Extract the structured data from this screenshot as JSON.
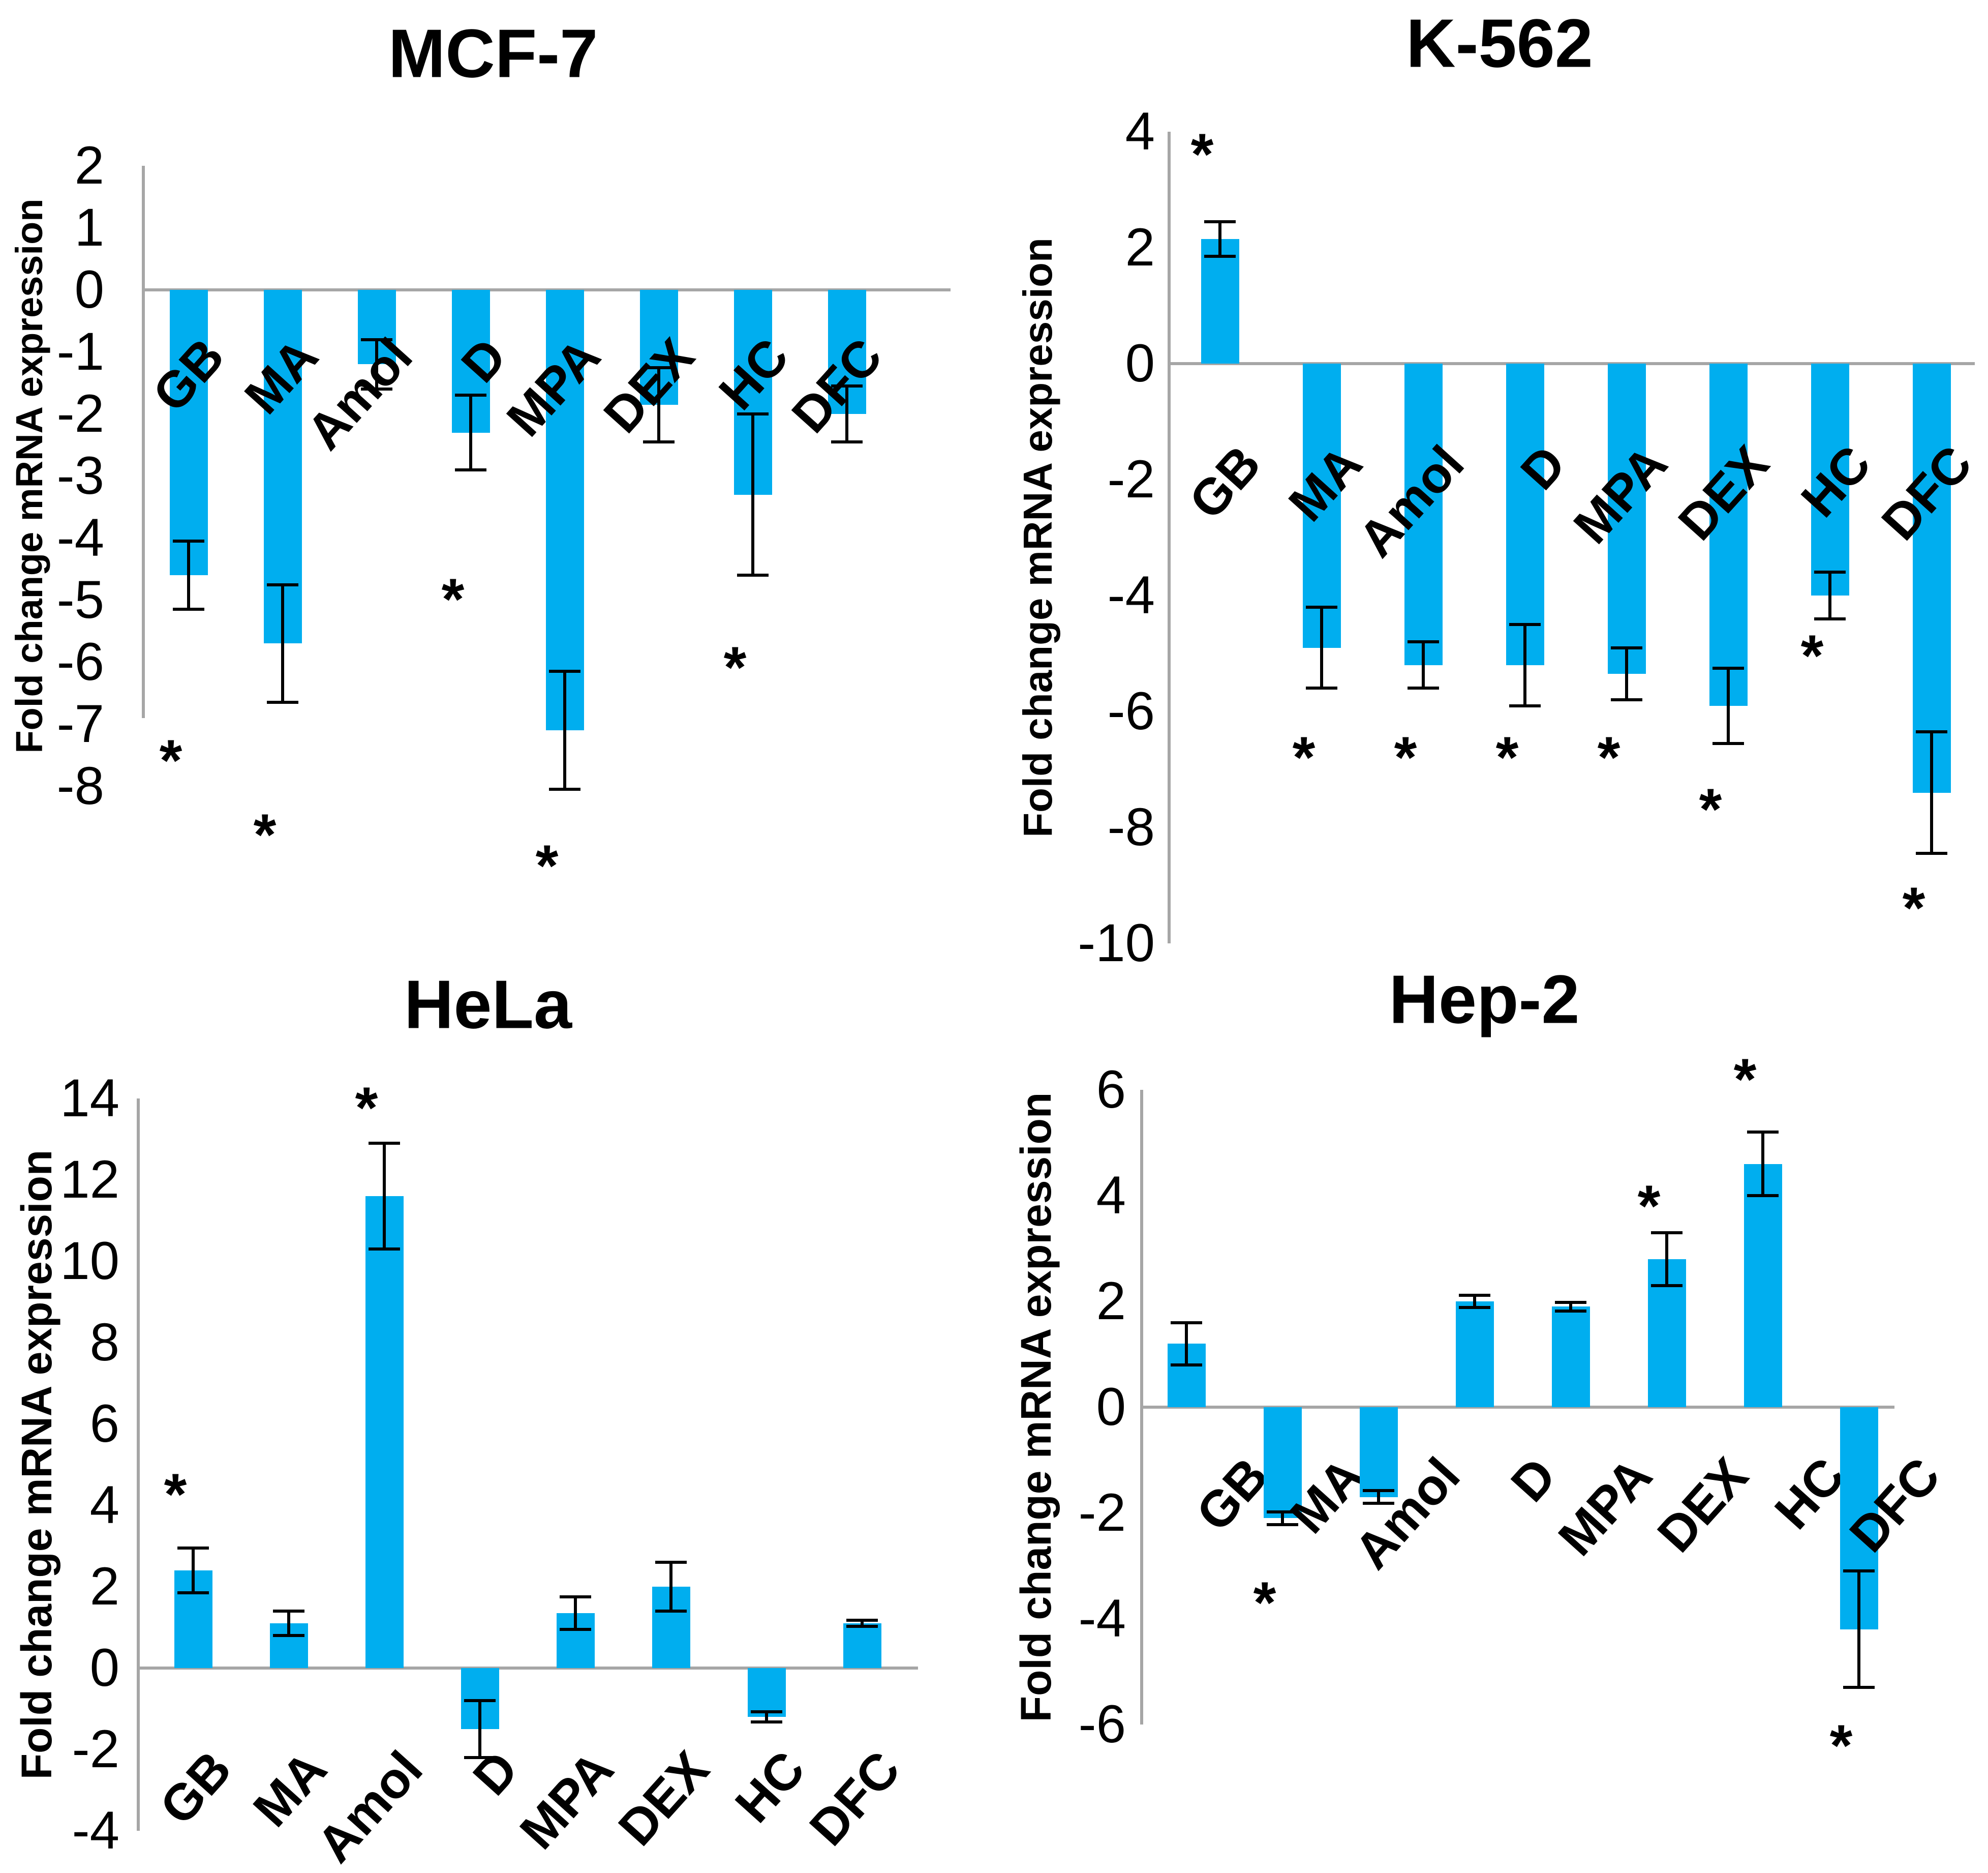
{
  "colors": {
    "bar": "#00AEEF",
    "axis_line": "#A6A6A6",
    "error_bar": "#000000",
    "text": "#000000",
    "background": "#FFFFFF"
  },
  "significance_marker": "*",
  "chart_data": [
    {
      "id": "mcf7",
      "type": "bar",
      "title": "MCF-7",
      "ylabel": "Fold change mRNA expression",
      "ylim": [
        -8,
        2
      ],
      "ytick_step": 1,
      "grid": false,
      "legend": "none",
      "categories": [
        "GB",
        "MA",
        "Amol",
        "D",
        "MPA",
        "DEX",
        "HC",
        "DFC"
      ],
      "values": [
        -4.6,
        -5.7,
        -1.2,
        -2.3,
        -7.1,
        -1.85,
        -3.3,
        -2.0
      ],
      "errors": [
        0.55,
        0.95,
        0.4,
        0.6,
        0.95,
        0.6,
        1.3,
        0.45
      ],
      "sig_y": [
        -7.5,
        -8.7,
        null,
        -4.9,
        null,
        null,
        -6.0,
        null
      ],
      "sig_y_low": [
        null,
        null,
        null,
        null,
        -9.2,
        null,
        null,
        null
      ]
    },
    {
      "id": "k562",
      "type": "bar",
      "title": "K-562",
      "ylabel": "Fold change mRNA expression",
      "ylim": [
        -10,
        4
      ],
      "ytick_step": 2,
      "grid": false,
      "legend": "none",
      "categories": [
        "GB",
        "MA",
        "Amol",
        "D",
        "MPA",
        "DEX",
        "HC",
        "DFC"
      ],
      "values": [
        2.15,
        -4.9,
        -5.2,
        -5.2,
        -5.35,
        -5.9,
        -4.0,
        -7.4
      ],
      "errors": [
        0.3,
        0.7,
        0.4,
        0.7,
        0.45,
        0.65,
        0.4,
        1.05
      ],
      "sig_y": [
        3.7,
        -6.7,
        -6.7,
        -6.7,
        -6.7,
        -7.6,
        -4.95,
        -9.3
      ],
      "sig_y_low": [
        null,
        null,
        null,
        null,
        null,
        null,
        null,
        null
      ]
    },
    {
      "id": "hela",
      "type": "bar",
      "title": "HeLa",
      "ylabel": "Fold change mRNA expression",
      "ylim": [
        -4,
        14
      ],
      "ytick_step": 2,
      "grid": false,
      "legend": "none",
      "categories": [
        "GB",
        "MA",
        "Amol",
        "D",
        "MPA",
        "DEX",
        "HC",
        "DFC"
      ],
      "values": [
        2.4,
        1.1,
        11.6,
        -1.5,
        1.35,
        2.0,
        -1.2,
        1.1
      ],
      "errors": [
        0.55,
        0.3,
        1.3,
        0.7,
        0.4,
        0.6,
        0.12,
        0.08
      ],
      "sig_y": [
        4.4,
        null,
        13.9,
        null,
        null,
        null,
        null,
        null
      ],
      "sig_y_low": [
        null,
        null,
        null,
        null,
        null,
        null,
        null,
        null
      ]
    },
    {
      "id": "hep2",
      "type": "bar",
      "title": "Hep-2",
      "ylabel": "Fold change mRNA expression",
      "ylim": [
        -6,
        6
      ],
      "ytick_step": 2,
      "grid": false,
      "legend": "none",
      "categories": [
        "GB",
        "MA",
        "Amol",
        "D",
        "MPA",
        "DEX",
        "HC",
        "DFC"
      ],
      "values": [
        1.2,
        -2.1,
        -1.7,
        2.0,
        1.9,
        2.8,
        4.6,
        -4.2
      ],
      "errors": [
        0.4,
        0.12,
        0.12,
        0.12,
        0.08,
        0.5,
        0.6,
        1.1
      ],
      "sig_y": [
        null,
        -3.6,
        null,
        null,
        null,
        3.9,
        6.3,
        -6.3
      ],
      "sig_y_low": [
        null,
        null,
        null,
        null,
        null,
        null,
        null,
        null
      ]
    }
  ]
}
